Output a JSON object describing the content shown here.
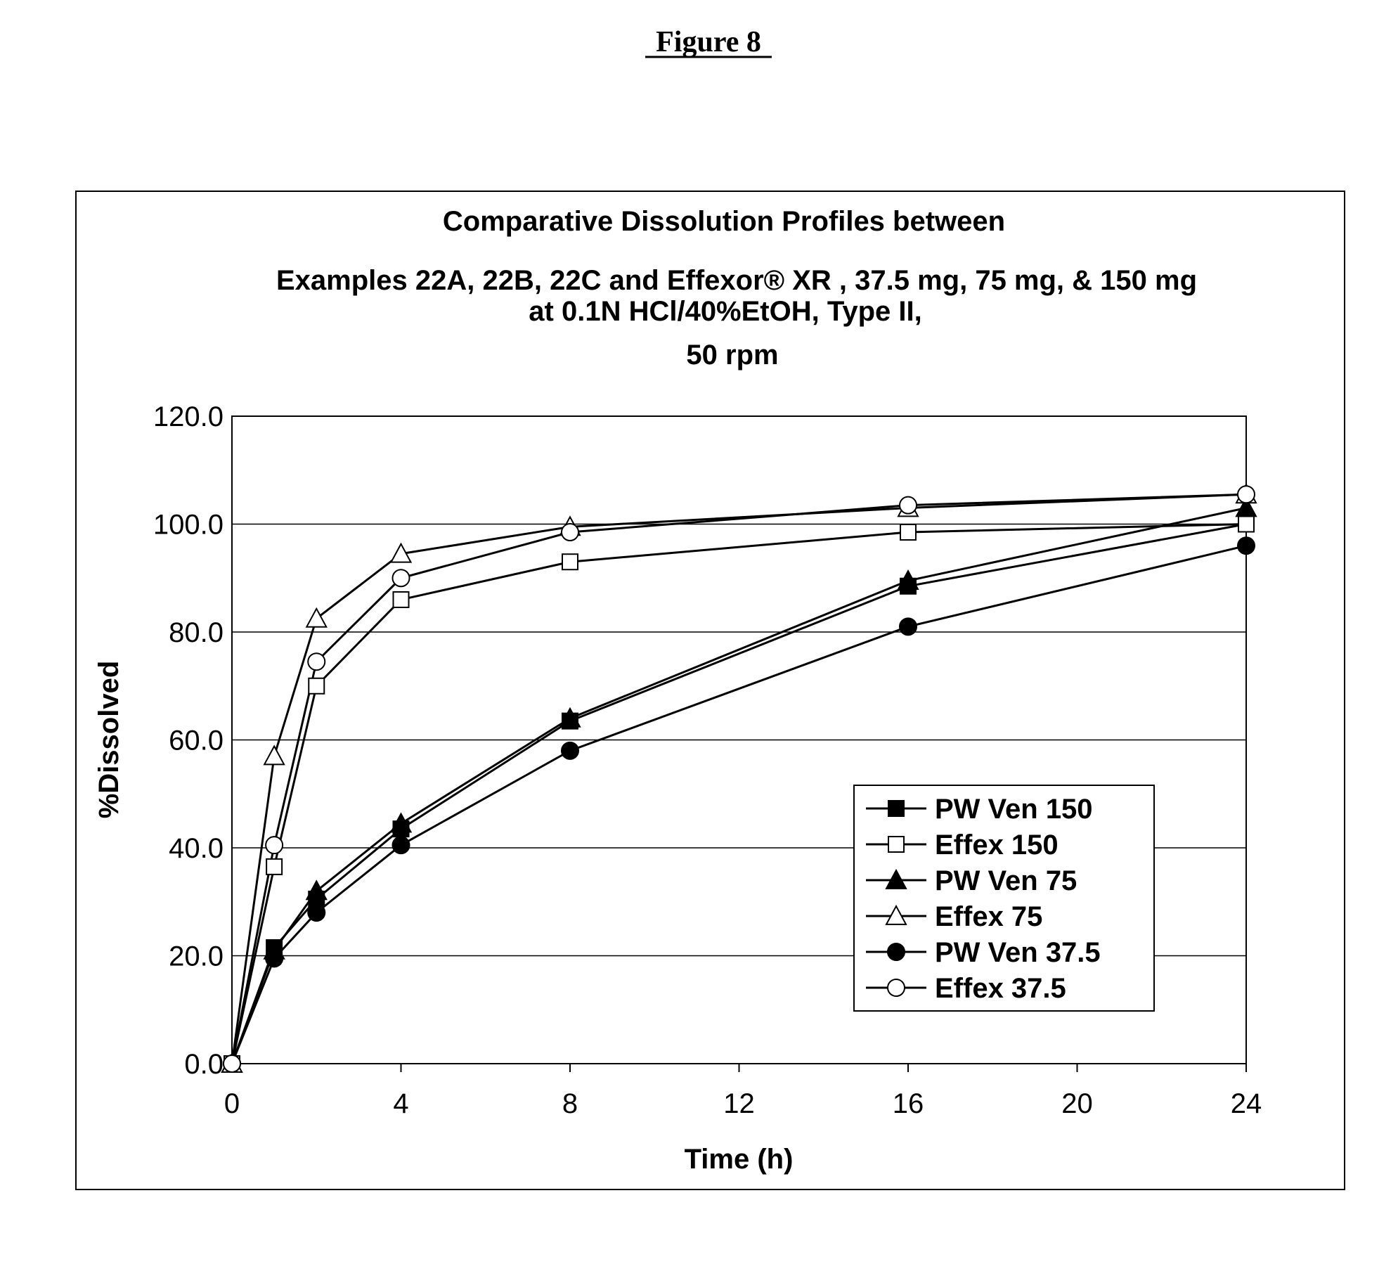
{
  "figure_label": "Figure 8",
  "chart_data": {
    "type": "line",
    "title_lines": [
      "Comparative Dissolution Profiles between",
      "Examples 22A, 22B, 22C and Effexor® XR , 37.5 mg, 75 mg, & 150 mg",
      "at 0.1N HCl/40%EtOH, Type II,",
      "50 rpm"
    ],
    "xlabel": "Time (h)",
    "ylabel": "%Dissolved",
    "xlim": [
      0,
      24
    ],
    "ylim": [
      0,
      120
    ],
    "x_ticks": [
      "0",
      "4",
      "8",
      "12",
      "16",
      "20",
      "24"
    ],
    "y_ticks": [
      "0.0",
      "20.0",
      "40.0",
      "60.0",
      "80.0",
      "100.0",
      "120.0"
    ],
    "grid": "horizontal",
    "legend_position": "lower-right",
    "x": [
      0,
      1,
      2,
      4,
      8,
      16,
      24
    ],
    "series": [
      {
        "name": "PW Ven 150",
        "marker": "square-filled",
        "values": [
          0,
          21.5,
          30.5,
          43.5,
          63.5,
          88.5,
          100
        ]
      },
      {
        "name": "Effex 150",
        "marker": "square-open",
        "values": [
          0,
          36.5,
          70,
          86,
          93,
          98.5,
          100
        ]
      },
      {
        "name": "PW Ven 75",
        "marker": "triangle-filled",
        "values": [
          0,
          21,
          32,
          44.5,
          64,
          89.5,
          103
        ]
      },
      {
        "name": "Effex 75",
        "marker": "triangle-open",
        "values": [
          0,
          57,
          82.5,
          94.5,
          99.5,
          103,
          105.5
        ]
      },
      {
        "name": "PW Ven 37.5",
        "marker": "circle-filled",
        "values": [
          0,
          19.5,
          28,
          40.5,
          58,
          81,
          96
        ]
      },
      {
        "name": "Effex 37.5",
        "marker": "circle-open",
        "values": [
          0,
          40.5,
          74.5,
          90,
          98.5,
          103.5,
          105.5
        ]
      }
    ]
  }
}
